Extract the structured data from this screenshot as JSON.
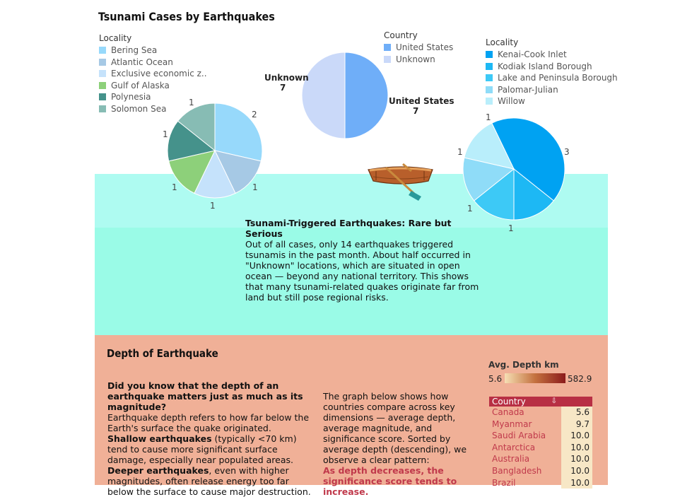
{
  "title": "Tsunami Cases by Earthquakes",
  "legend_left": {
    "title": "Locality",
    "items": [
      {
        "label": "Bering Sea",
        "color": "#97d9fb"
      },
      {
        "label": "Atlantic Ocean",
        "color": "#a6c9e5"
      },
      {
        "label": "Exclusive economic z..",
        "color": "#c5e2fb"
      },
      {
        "label": "Gulf of Alaska",
        "color": "#8dd07a"
      },
      {
        "label": "Polynesia",
        "color": "#45928b"
      },
      {
        "label": "Solomon Sea",
        "color": "#87bcb4"
      }
    ]
  },
  "legend_country": {
    "title": "Country",
    "items": [
      {
        "label": "United States",
        "color": "#6faef8"
      },
      {
        "label": "Unknown",
        "color": "#cad9f9"
      }
    ]
  },
  "legend_right": {
    "title": "Locality",
    "items": [
      {
        "label": "Kenai-Cook Inlet",
        "color": "#00a2f2"
      },
      {
        "label": "Kodiak Island Borough",
        "color": "#1db8f4"
      },
      {
        "label": "Lake and Peninsula Borough",
        "color": "#3dc9f6"
      },
      {
        "label": "Palomar-Julian",
        "color": "#8fdcf8"
      },
      {
        "label": "Willow",
        "color": "#b9eefb"
      }
    ]
  },
  "pie_left": {
    "slices": [
      {
        "label": "Bering Sea",
        "value": 2,
        "color": "#97d9fb"
      },
      {
        "label": "Atlantic Ocean",
        "value": 1,
        "color": "#a6c9e5"
      },
      {
        "label": "Exclusive economic z..",
        "value": 1,
        "color": "#c5e2fb"
      },
      {
        "label": "Gulf of Alaska",
        "value": 1,
        "color": "#8dd07a"
      },
      {
        "label": "Polynesia",
        "value": 1,
        "color": "#45928b"
      },
      {
        "label": "Solomon Sea",
        "value": 1,
        "color": "#87bcb4"
      }
    ],
    "value_labels": [
      "2",
      "1",
      "1",
      "1",
      "1",
      "1"
    ]
  },
  "pie_country": {
    "slices": [
      {
        "label": "United States",
        "value": 7,
        "color": "#6faef8"
      },
      {
        "label": "Unknown",
        "value": 7,
        "color": "#cad9f9"
      }
    ],
    "unknown_name": "Unknown",
    "unknown_value": "7",
    "us_name": "United States",
    "us_value": "7"
  },
  "pie_right": {
    "slices": [
      {
        "label": "Kenai-Cook Inlet",
        "value": 3,
        "color": "#00a2f2"
      },
      {
        "label": "Kodiak Island Borough",
        "value": 1,
        "color": "#1db8f4"
      },
      {
        "label": "Lake and Peninsula Borough",
        "value": 1,
        "color": "#3dc9f6"
      },
      {
        "label": "Palomar-Julian",
        "value": 1,
        "color": "#8fdcf8"
      },
      {
        "label": "Willow",
        "value": 1,
        "color": "#b9eefb"
      }
    ],
    "value_labels": [
      "3",
      "1",
      "1",
      "1",
      "1"
    ]
  },
  "tsunami_note": {
    "heading": "Tsunami-Triggered Earthquakes: Rare but Serious",
    "body": "Out of all cases, only 14 earthquakes triggered tsunamis in the past month. About half occurred in \"Unknown\" locations, which are situated in open ocean — beyond any national territory. This shows that many tsunami-related quakes originate far from land but still pose regional risks."
  },
  "depth": {
    "title": "Depth of Earthquake",
    "question": "Did you know that the depth of an earthquake matters just as much as its magnitude?",
    "p1_start": "Earthquake depth refers to how far below the Earth's surface the quake originated. ",
    "p1_bold1": "Shallow earthquakes",
    "p1_mid": " (typically <70 km) tend to cause more significant surface damage, especially near populated areas. ",
    "p1_bold2": "Deeper earthquakes",
    "p1_end": ", even with higher magnitudes, often release energy too far below the surface to cause major destruction.",
    "p2": "The graph below shows how countries compare across key dimensions — average depth, average magnitude, and significance score. Sorted by average depth (descending), we observe a clear pattern:",
    "p2_highlight": "As depth decreases, the significance score tends to increase.",
    "avg_depth_title": "Avg. Depth km",
    "avg_depth_min": "5.6",
    "avg_depth_max": "582.9",
    "table_header": "Country",
    "rows": [
      {
        "country": "Canada",
        "value": "5.6"
      },
      {
        "country": "Myanmar",
        "value": "9.7"
      },
      {
        "country": "Saudi Arabia",
        "value": "10.0"
      },
      {
        "country": "Antarctica",
        "value": "10.0"
      },
      {
        "country": "Australia",
        "value": "10.0"
      },
      {
        "country": "Bangladesh",
        "value": "10.0"
      },
      {
        "country": "Brazil",
        "value": "10.0"
      }
    ]
  }
}
